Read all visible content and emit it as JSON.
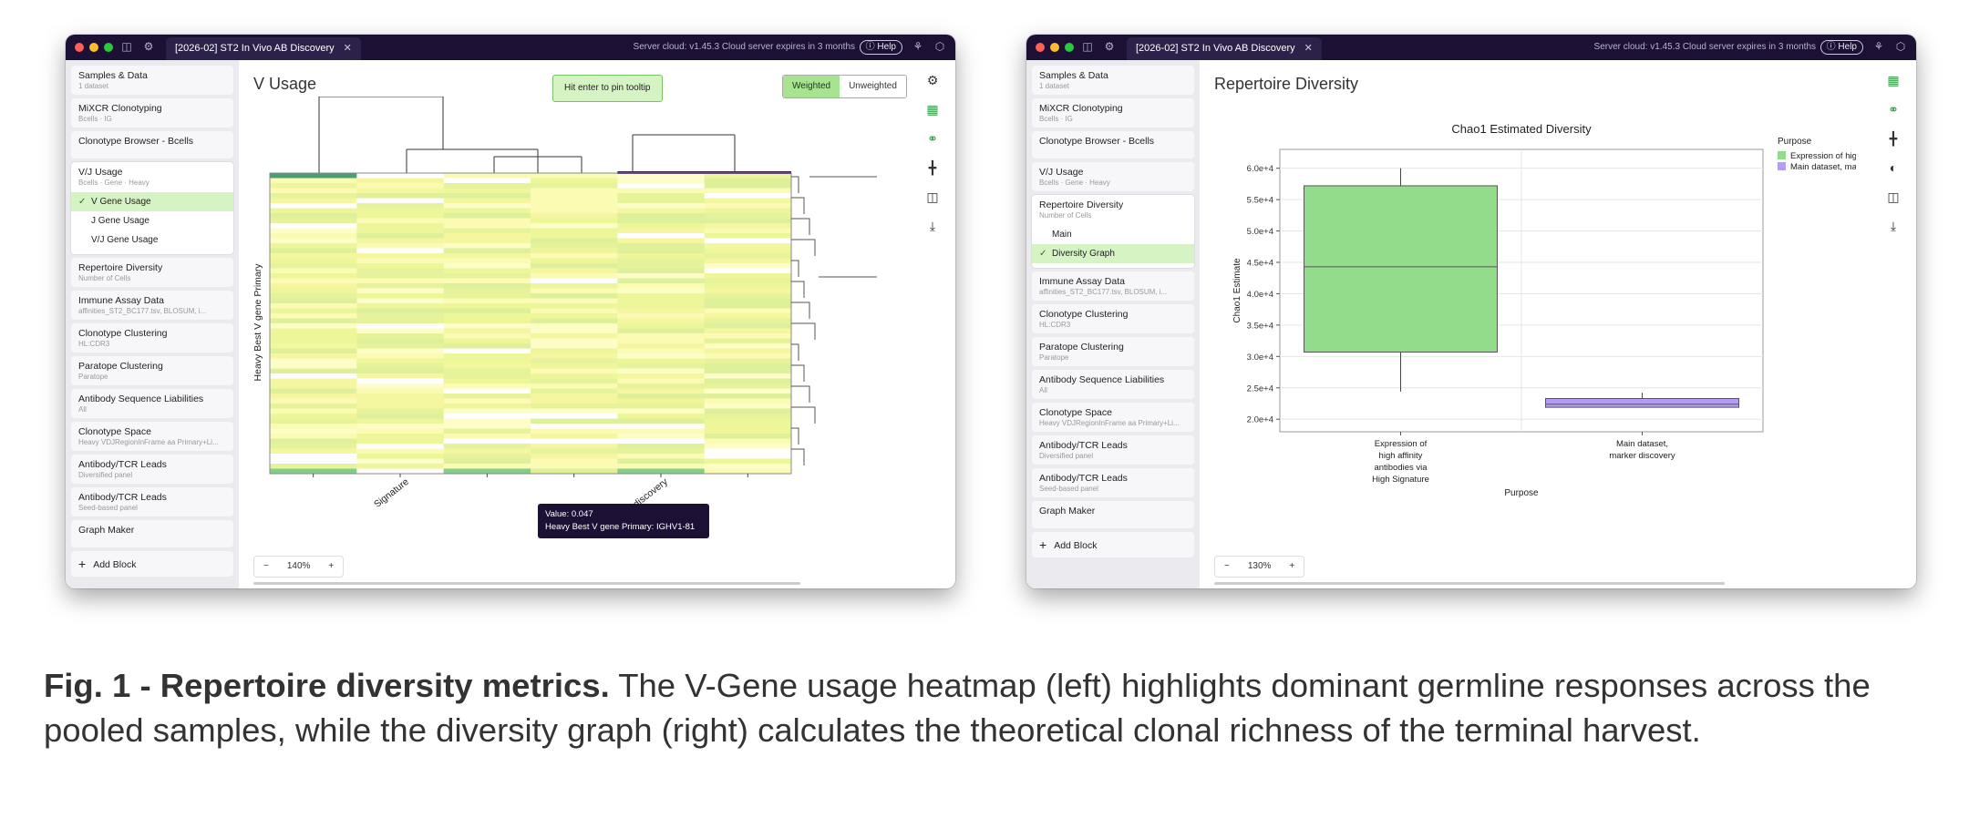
{
  "left_window": {
    "tab_title": "[2026-02] ST2 In Vivo AB Discovery",
    "server_status": "Server cloud: v1.45.3 Cloud server expires in 3 months",
    "help_label": "Help",
    "sidebar": {
      "blocks": [
        {
          "title": "Samples & Data",
          "subtitle": "1 dataset"
        },
        {
          "title": "MiXCR Clonotyping",
          "subtitle": "Bcells · IG"
        },
        {
          "title": "Clonotype Browser - Bcells",
          "subtitle": ""
        },
        {
          "title": "V/J Usage",
          "subtitle": "Bcells · Gene · Heavy",
          "subitems": [
            "V Gene Usage",
            "J Gene Usage",
            "V/J Gene Usage"
          ]
        },
        {
          "title": "Repertoire Diversity",
          "subtitle": "Number of Cells"
        },
        {
          "title": "Immune Assay Data",
          "subtitle": "affinities_ST2_BC177.tsv, BLOSUM, i..."
        },
        {
          "title": "Clonotype Clustering",
          "subtitle": "HL:CDR3"
        },
        {
          "title": "Paratope Clustering",
          "subtitle": "Paratope"
        },
        {
          "title": "Antibody Sequence Liabilities",
          "subtitle": "All"
        },
        {
          "title": "Clonotype Space",
          "subtitle": "Heavy VDJRegionInFrame aa Primary+Li..."
        },
        {
          "title": "Antibody/TCR Leads",
          "subtitle": "Diversified panel"
        },
        {
          "title": "Antibody/TCR Leads",
          "subtitle": "Seed-based panel"
        },
        {
          "title": "Graph Maker",
          "subtitle": ""
        }
      ],
      "add_block": "Add Block"
    },
    "page_title": "V Usage",
    "pin_hint": "Hit enter to pin tooltip",
    "toggle": {
      "weighted": "Weighted",
      "unweighted": "Unweighted"
    },
    "y_axis_label": "Heavy Best V gene Primary",
    "x_tick_1": "...via High Signature",
    "x_tick_2": "...t, marker discovery",
    "tooltip": {
      "value": "Value: 0.047",
      "gene": "Heavy Best V gene Primary: IGHV1-81"
    },
    "zoom_level": "140%"
  },
  "right_window": {
    "tab_title": "[2026-02] ST2 In Vivo AB Discovery",
    "server_status": "Server cloud: v1.45.3 Cloud server expires in 3 months",
    "help_label": "Help",
    "sidebar": {
      "blocks": [
        {
          "title": "Samples & Data",
          "subtitle": "1 dataset"
        },
        {
          "title": "MiXCR Clonotyping",
          "subtitle": "Bcells · IG"
        },
        {
          "title": "Clonotype Browser - Bcells",
          "subtitle": ""
        },
        {
          "title": "V/J Usage",
          "subtitle": "Bcells · Gene · Heavy"
        },
        {
          "title": "Repertoire Diversity",
          "subtitle": "Number of Cells",
          "subitems": [
            "Main",
            "Diversity Graph"
          ]
        },
        {
          "title": "Immune Assay Data",
          "subtitle": "affinities_ST2_BC177.tsv, BLOSUM, i..."
        },
        {
          "title": "Clonotype Clustering",
          "subtitle": "HL:CDR3"
        },
        {
          "title": "Paratope Clustering",
          "subtitle": "Paratope"
        },
        {
          "title": "Antibody Sequence Liabilities",
          "subtitle": "All"
        },
        {
          "title": "Clonotype Space",
          "subtitle": "Heavy VDJRegionInFrame aa Primary+Li..."
        },
        {
          "title": "Antibody/TCR Leads",
          "subtitle": "Diversified panel"
        },
        {
          "title": "Antibody/TCR Leads",
          "subtitle": "Seed-based panel"
        },
        {
          "title": "Graph Maker",
          "subtitle": ""
        }
      ],
      "add_block": "Add Block"
    },
    "page_title": "Repertoire Diversity",
    "zoom_level": "130%"
  },
  "chart_data": [
    {
      "type": "heatmap",
      "title": "",
      "ylabel": "Heavy Best V gene Primary",
      "columns": 6,
      "color_low": "#fdfdb0",
      "color_high": "#2e8f6a",
      "tooltip_value": 0.047,
      "tooltip_gene": "IGHV1-81"
    },
    {
      "type": "boxplot",
      "title": "Chao1 Estimated Diversity",
      "xlabel": "Purpose",
      "ylabel": "Chao1 Estimate",
      "categories": [
        "Expression of high affinity antibodies via High Signature",
        "Main dataset, marker discovery"
      ],
      "category_lines": [
        [
          "Expression of",
          "high affinity",
          "antibodies via",
          "High Signature"
        ],
        [
          "Main dataset,",
          "marker discovery"
        ]
      ],
      "series": [
        {
          "name": "Expression of high affinity antibodies via High Signature",
          "min": 24400,
          "q1": 30700,
          "median": 44300,
          "q3": 57200,
          "max": 60000,
          "color": "#93dc8c"
        },
        {
          "name": "Main dataset, marker discovery",
          "min": 21900,
          "q1": 21900,
          "median": 22400,
          "q3": 23300,
          "max": 24200,
          "color": "#b59ef2"
        }
      ],
      "ylim": [
        18000,
        63000
      ],
      "yticks": [
        20000,
        25000,
        30000,
        35000,
        40000,
        45000,
        50000,
        55000,
        60000
      ],
      "ytick_labels": [
        "2.0e+4",
        "2.5e+4",
        "3.0e+4",
        "3.5e+4",
        "4.0e+4",
        "4.5e+4",
        "5.0e+4",
        "5.5e+4",
        "6.0e+4"
      ],
      "legend_title": "Purpose",
      "legend_entries": [
        "Expression of high affinity antibodies via High Signature",
        "Main dataset, marker discovery"
      ],
      "legend_display": [
        "Expression of high",
        "Main dataset, mar"
      ],
      "legend_position": "top-right",
      "grid": true
    }
  ],
  "caption": {
    "bold": "Fig. 1 - Repertoire diversity metrics.",
    "text": " The V-Gene usage heatmap (left) highlights dominant germline responses across the pooled samples, while the diversity graph (right) calculates the theoretical clonal richness of the terminal harvest."
  }
}
